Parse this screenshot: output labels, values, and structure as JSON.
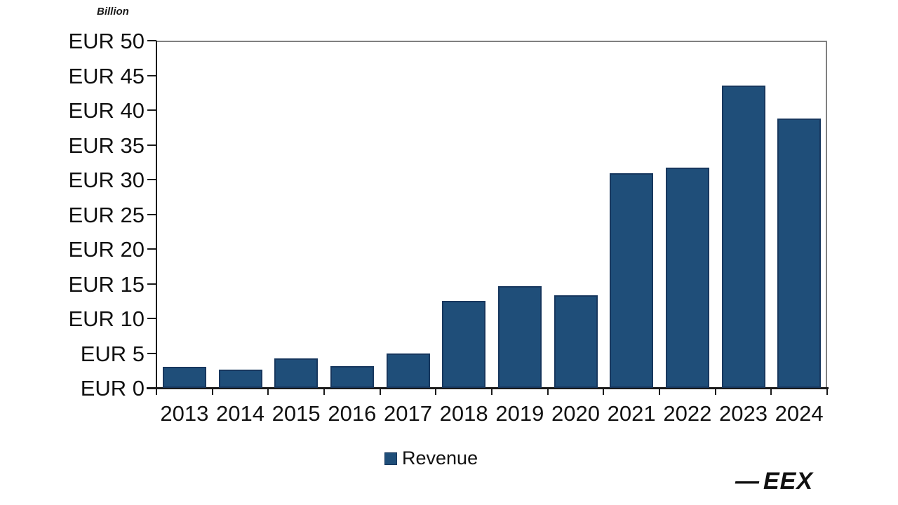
{
  "chart_data": {
    "type": "bar",
    "title": "",
    "unit_label": "Billion",
    "categories": [
      "2013",
      "2014",
      "2015",
      "2016",
      "2017",
      "2018",
      "2019",
      "2020",
      "2021",
      "2022",
      "2023",
      "2024"
    ],
    "series": [
      {
        "name": "Revenue",
        "values": [
          3.0,
          2.6,
          4.2,
          3.1,
          4.9,
          12.5,
          14.6,
          13.3,
          30.9,
          31.7,
          43.5,
          38.8
        ]
      }
    ],
    "xlabel": "",
    "ylabel": "Billion",
    "ylim": [
      0,
      50
    ],
    "y_tick_step": 5,
    "y_tick_prefix": "EUR ",
    "grid": "off",
    "legend_position": "bottom-center",
    "colors": {
      "bar_fill": "#1f4e79",
      "bar_border": "#17375e",
      "axis": "#1a1a1a",
      "plot_border": "#808080",
      "text": "#111111"
    }
  },
  "legend": {
    "label": "Revenue"
  },
  "branding": {
    "dash": "—",
    "logo_text": "EEX"
  }
}
